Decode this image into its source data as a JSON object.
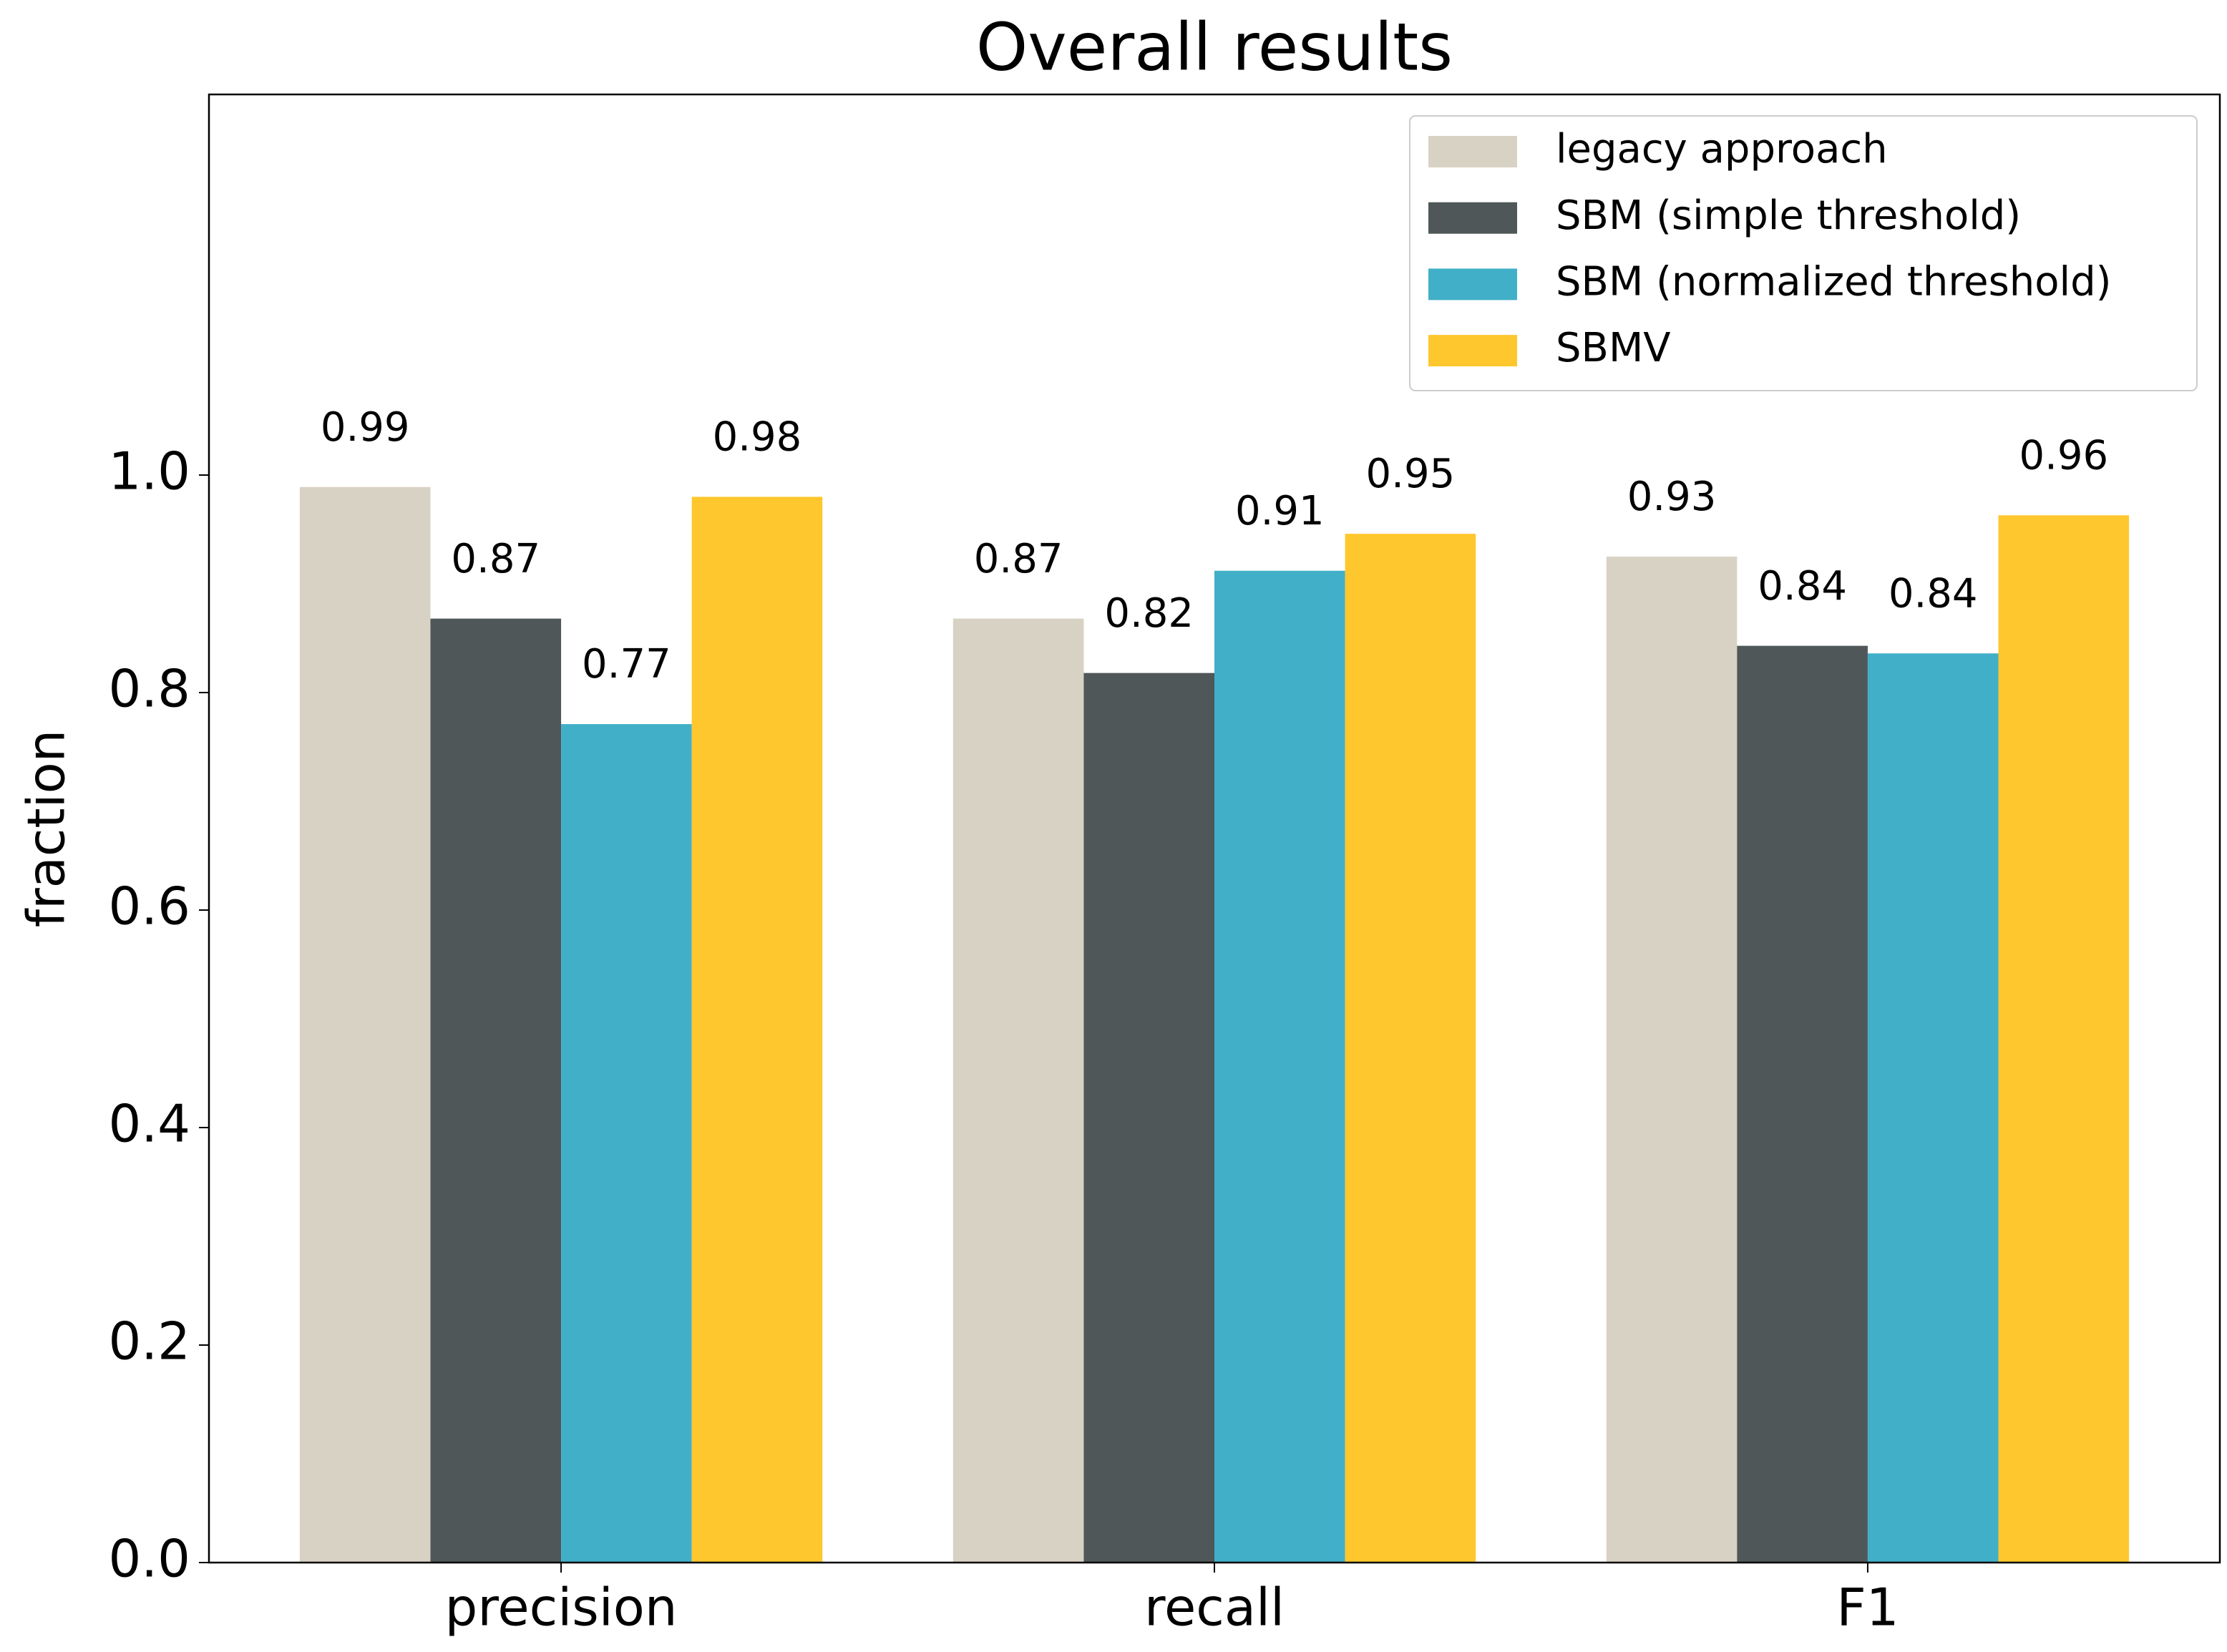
{
  "chart_data": {
    "type": "bar",
    "title": "Overall results",
    "y_label": "fraction",
    "categories": [
      "precision",
      "recall",
      "F1"
    ],
    "series": [
      {
        "name": "legacy approach",
        "color": "#d8d2c4",
        "values": [
          0.989,
          0.868,
          0.925
        ],
        "value_labels": [
          "0.99",
          "0.87",
          "0.93"
        ]
      },
      {
        "name": "SBM (simple threshold)",
        "color": "#4f5758",
        "values": [
          0.868,
          0.818,
          0.843
        ],
        "value_labels": [
          "0.87",
          "0.82",
          "0.84"
        ]
      },
      {
        "name": "SBM (normalized threshold)",
        "color": "#41afc8",
        "values": [
          0.771,
          0.912,
          0.836
        ],
        "value_labels": [
          "0.77",
          "0.91",
          "0.84"
        ]
      },
      {
        "name": "SBMV",
        "color": "#fec72e",
        "values": [
          0.98,
          0.946,
          0.963
        ],
        "value_labels": [
          "0.98",
          "0.95",
          "0.96"
        ]
      }
    ],
    "ylim": [
      0,
      1.35
    ],
    "yticks": [
      {
        "value": 0,
        "label": "0.0"
      },
      {
        "value": 0.2,
        "label": "0.2"
      },
      {
        "value": 0.4,
        "label": "0.4"
      },
      {
        "value": 0.6,
        "label": "0.6"
      },
      {
        "value": 0.8,
        "label": "0.8"
      },
      {
        "value": 1,
        "label": "1.0"
      }
    ],
    "legend": "upper right"
  }
}
